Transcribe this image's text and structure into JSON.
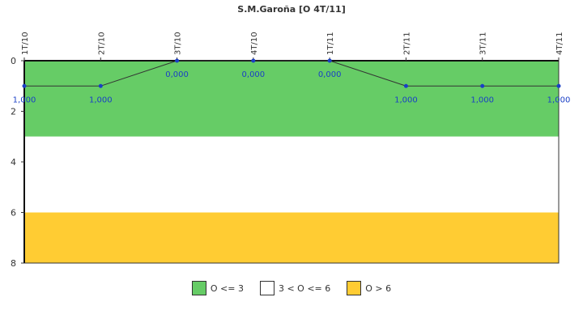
{
  "chart_data": {
    "type": "line",
    "title": "S.M.Garoña [O 4T/11]",
    "categories": [
      "1T/10",
      "2T/10",
      "3T/10",
      "4T/10",
      "1T/11",
      "2T/11",
      "3T/11",
      "4T/11"
    ],
    "series": [
      {
        "values": [
          1,
          1,
          0,
          0,
          0,
          1,
          1,
          1
        ],
        "labels": [
          "1,000",
          "1,000",
          "0,000",
          "0,000",
          "0,000",
          "1,000",
          "1,000",
          "1,000"
        ]
      }
    ],
    "y_axis": {
      "inverted": true,
      "ylim": [
        0,
        8
      ],
      "ticks": [
        0,
        2,
        4,
        6,
        8
      ]
    },
    "bands": [
      {
        "from": 0,
        "to": 3,
        "color": "#66cc66",
        "label": "O <= 3"
      },
      {
        "from": 3,
        "to": 6,
        "color": "#ffffff",
        "label": "3 < O <= 6"
      },
      {
        "from": 6,
        "to": 8,
        "color": "#ffcc33",
        "label": "O > 6"
      }
    ],
    "colors": {
      "line": "#333333",
      "marker": "#1a3fc6",
      "label": "#1a3fc6"
    },
    "grid": false,
    "legend_position": "bottom"
  }
}
